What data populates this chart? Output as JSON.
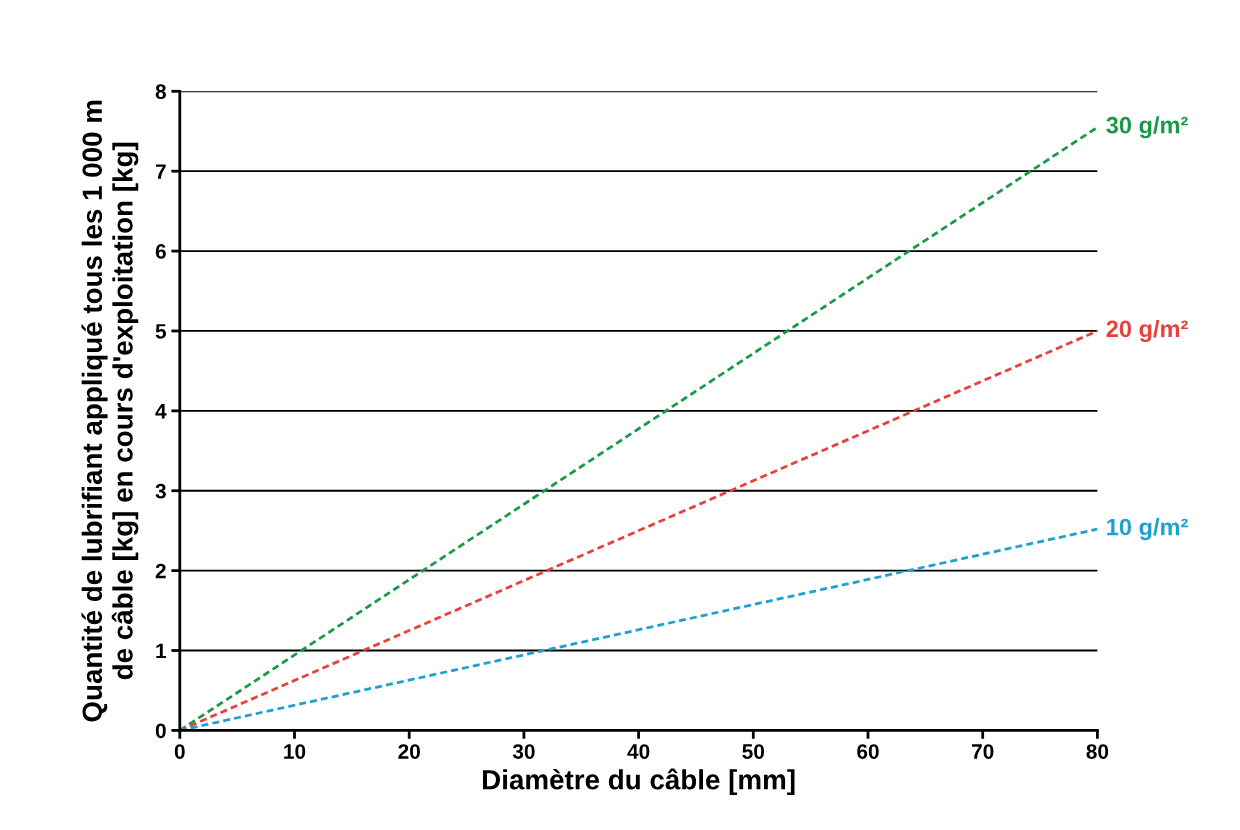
{
  "chart_data": {
    "type": "line",
    "xlabel": "Diamètre du câble [mm]",
    "ylabel": "Quantité de lubrifiant appliqué tous les 1 000 m\nde câble [kg] en cours d'exploitation [kg]",
    "x": [
      0,
      80
    ],
    "series": [
      {
        "name": "30 g/m²",
        "color": "#1a9a48",
        "values": [
          0,
          7.55
        ]
      },
      {
        "name": "20 g/m²",
        "color": "#e8403a",
        "values": [
          0,
          5.0
        ]
      },
      {
        "name": "10 g/m²",
        "color": "#1ea0d0",
        "values": [
          0,
          2.52
        ]
      }
    ],
    "xlim": [
      0,
      80
    ],
    "xticks": [
      0,
      10,
      20,
      30,
      40,
      50,
      60,
      70,
      80
    ],
    "ylim": [
      0,
      8
    ],
    "yticks": [
      0,
      1,
      2,
      3,
      4,
      5,
      6,
      7,
      8
    ],
    "grid": "y",
    "legend": false,
    "marker": "none",
    "line_style": "dashed"
  }
}
